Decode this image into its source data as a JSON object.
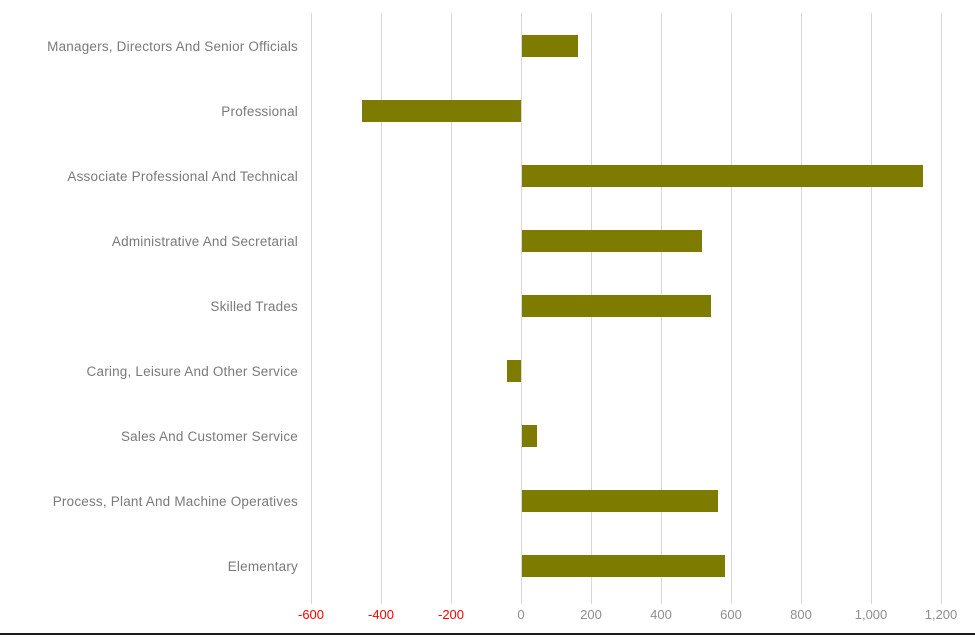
{
  "chart_data": {
    "type": "bar",
    "orientation": "horizontal",
    "title": "",
    "xlabel": "",
    "ylabel": "",
    "categories": [
      "Managers, Directors And Senior Officials",
      "Professional",
      "Associate Professional And Technical",
      "Administrative And Secretarial",
      "Skilled Trades",
      "Caring, Leisure And Other Service",
      "Sales And Customer Service",
      "Process, Plant And Machine Operatives",
      "Elementary"
    ],
    "values": [
      160,
      -455,
      1147,
      515,
      540,
      -40,
      45,
      560,
      580
    ],
    "xlim": [
      -600,
      1200
    ],
    "x_ticks": [
      -600,
      -400,
      -200,
      0,
      200,
      400,
      600,
      800,
      1000,
      1200
    ],
    "x_tick_labels": [
      "-600",
      "-400",
      "-200",
      "0",
      "200",
      "400",
      "600",
      "800",
      "1,000",
      "1,200"
    ],
    "grid": true,
    "legend": false,
    "colors": {
      "bar": "#7d7b00",
      "negative_tick": "#ff0000",
      "positive_tick": "#8f8f8f",
      "category_label": "#7a7a7a",
      "gridline": "#d8d8d8",
      "axis_line": "#1c1c1c",
      "background": "#ffffff"
    }
  }
}
